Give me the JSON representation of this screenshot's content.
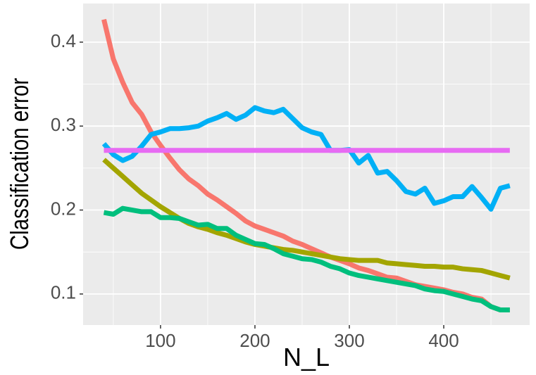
{
  "chart_data": {
    "type": "line",
    "x_label": "N_L",
    "y_label": "Classification error",
    "x": [
      40,
      50,
      60,
      70,
      80,
      90,
      100,
      110,
      120,
      130,
      140,
      150,
      160,
      170,
      180,
      190,
      200,
      210,
      220,
      230,
      240,
      250,
      260,
      270,
      280,
      290,
      300,
      310,
      320,
      330,
      340,
      350,
      360,
      370,
      380,
      390,
      400,
      410,
      420,
      430,
      440,
      450,
      460,
      470
    ],
    "series": [
      {
        "color": "#F8766D",
        "values": [
          0.427,
          0.38,
          0.352,
          0.328,
          0.314,
          0.293,
          0.277,
          0.262,
          0.248,
          0.237,
          0.229,
          0.219,
          0.212,
          0.204,
          0.196,
          0.187,
          0.181,
          0.177,
          0.173,
          0.169,
          0.163,
          0.159,
          0.154,
          0.149,
          0.144,
          0.14,
          0.136,
          0.131,
          0.128,
          0.124,
          0.12,
          0.119,
          0.115,
          0.111,
          0.109,
          0.107,
          0.105,
          0.102,
          0.1,
          0.096,
          0.094,
          0.085,
          0.081,
          0.081
        ]
      },
      {
        "color": "#A3A500",
        "values": [
          0.26,
          0.25,
          0.24,
          0.23,
          0.22,
          0.212,
          0.204,
          0.197,
          0.19,
          0.184,
          0.18,
          0.177,
          0.173,
          0.17,
          0.166,
          0.162,
          0.159,
          0.157,
          0.155,
          0.153,
          0.152,
          0.15,
          0.148,
          0.146,
          0.144,
          0.142,
          0.141,
          0.14,
          0.14,
          0.14,
          0.137,
          0.136,
          0.135,
          0.134,
          0.133,
          0.133,
          0.132,
          0.132,
          0.13,
          0.129,
          0.128,
          0.125,
          0.122,
          0.119
        ]
      },
      {
        "color": "#00BF7D",
        "values": [
          0.197,
          0.195,
          0.202,
          0.2,
          0.198,
          0.198,
          0.191,
          0.191,
          0.19,
          0.186,
          0.182,
          0.183,
          0.178,
          0.178,
          0.17,
          0.165,
          0.16,
          0.159,
          0.154,
          0.148,
          0.145,
          0.142,
          0.141,
          0.138,
          0.133,
          0.13,
          0.125,
          0.122,
          0.12,
          0.118,
          0.116,
          0.114,
          0.112,
          0.11,
          0.106,
          0.104,
          0.103,
          0.1,
          0.097,
          0.094,
          0.092,
          0.085,
          0.081,
          0.081
        ]
      },
      {
        "color": "#00B0F6",
        "values": [
          0.279,
          0.266,
          0.259,
          0.264,
          0.276,
          0.29,
          0.293,
          0.297,
          0.297,
          0.298,
          0.3,
          0.306,
          0.31,
          0.315,
          0.308,
          0.313,
          0.322,
          0.318,
          0.316,
          0.32,
          0.309,
          0.298,
          0.293,
          0.29,
          0.271,
          0.271,
          0.272,
          0.256,
          0.265,
          0.244,
          0.246,
          0.235,
          0.222,
          0.219,
          0.226,
          0.208,
          0.211,
          0.216,
          0.216,
          0.228,
          0.215,
          0.201,
          0.226,
          0.229
        ]
      },
      {
        "color": "#E76BF3",
        "values": [
          0.271,
          0.271,
          0.271,
          0.271,
          0.271,
          0.271,
          0.271,
          0.271,
          0.271,
          0.271,
          0.271,
          0.271,
          0.271,
          0.271,
          0.271,
          0.271,
          0.271,
          0.271,
          0.271,
          0.271,
          0.271,
          0.271,
          0.271,
          0.271,
          0.271,
          0.271,
          0.271,
          0.271,
          0.271,
          0.271,
          0.271,
          0.271,
          0.271,
          0.271,
          0.271,
          0.271,
          0.271,
          0.271,
          0.271,
          0.271,
          0.271,
          0.271,
          0.271,
          0.271
        ]
      }
    ],
    "xlim": [
      18,
      491
    ],
    "ylim": [
      0.063,
      0.446
    ],
    "xticks": [
      100,
      200,
      300,
      400
    ],
    "yticks": [
      0.1,
      0.2,
      0.3,
      0.4
    ],
    "grid": true
  }
}
